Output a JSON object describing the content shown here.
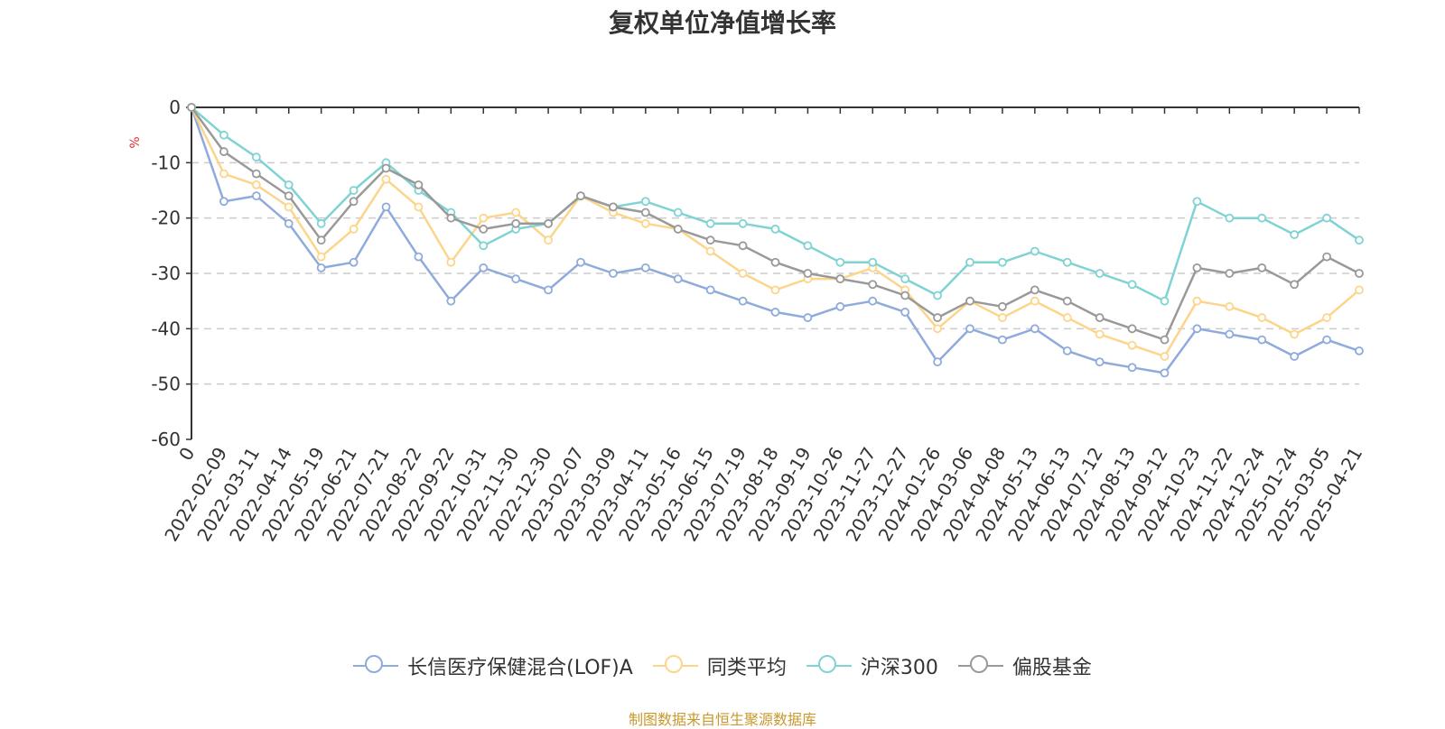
{
  "chart_data": {
    "type": "line",
    "title": "复权单位净值增长率",
    "ylabel": "%",
    "ylim": [
      -60,
      0
    ],
    "yticks": [
      0,
      -10,
      -20,
      -30,
      -40,
      -50,
      -60
    ],
    "grid": true,
    "legend_position": "bottom-center",
    "categories": [
      "0",
      "2022-02-09",
      "2022-03-11",
      "2022-04-14",
      "2022-05-19",
      "2022-06-21",
      "2022-07-21",
      "2022-08-22",
      "2022-09-22",
      "2022-10-31",
      "2022-11-30",
      "2022-12-30",
      "2023-02-07",
      "2023-03-09",
      "2023-04-11",
      "2023-05-16",
      "2023-06-15",
      "2023-07-19",
      "2023-08-18",
      "2023-09-19",
      "2023-10-26",
      "2023-11-27",
      "2023-12-27",
      "2024-01-26",
      "2024-03-06",
      "2024-04-08",
      "2024-05-13",
      "2024-06-13",
      "2024-07-12",
      "2024-08-13",
      "2024-09-12",
      "2024-10-23",
      "2024-11-22",
      "2024-12-24",
      "2025-01-24",
      "2025-03-05",
      "2025-04-21"
    ],
    "series": [
      {
        "name": "长信医疗保健混合(LOF)A",
        "color": "#8faadc",
        "values": [
          0,
          -17,
          -16,
          -21,
          -29,
          -28,
          -18,
          -27,
          -35,
          -29,
          -31,
          -33,
          -28,
          -30,
          -29,
          -31,
          -33,
          -35,
          -37,
          -38,
          -36,
          -35,
          -37,
          -46,
          -40,
          -42,
          -40,
          -44,
          -46,
          -47,
          -48,
          -40,
          -41,
          -42,
          -45,
          -42,
          -44
        ]
      },
      {
        "name": "同类平均",
        "color": "#fdd58a",
        "values": [
          0,
          -12,
          -14,
          -18,
          -27,
          -22,
          -13,
          -18,
          -28,
          -20,
          -19,
          -24,
          -16,
          -19,
          -21,
          -22,
          -26,
          -30,
          -33,
          -31,
          -31,
          -29,
          -33,
          -40,
          -35,
          -38,
          -35,
          -38,
          -41,
          -43,
          -45,
          -35,
          -36,
          -38,
          -41,
          -38,
          -33
        ]
      },
      {
        "name": "沪深300",
        "color": "#7fd3d3",
        "values": [
          0,
          -5,
          -9,
          -14,
          -21,
          -15,
          -10,
          -15,
          -19,
          -25,
          -22,
          -21,
          -16,
          -18,
          -17,
          -19,
          -21,
          -21,
          -22,
          -25,
          -28,
          -28,
          -31,
          -34,
          -28,
          -28,
          -26,
          -28,
          -30,
          -32,
          -35,
          -17,
          -20,
          -20,
          -23,
          -20,
          -24
        ]
      },
      {
        "name": "偏股基金",
        "color": "#999999",
        "values": [
          0,
          -8,
          -12,
          -16,
          -24,
          -17,
          -11,
          -14,
          -20,
          -22,
          -21,
          -21,
          -16,
          -18,
          -19,
          -22,
          -24,
          -25,
          -28,
          -30,
          -31,
          -32,
          -34,
          -38,
          -35,
          -36,
          -33,
          -35,
          -38,
          -40,
          -42,
          -29,
          -30,
          -29,
          -32,
          -27,
          -30
        ]
      }
    ]
  },
  "source_note": "制图数据来自恒生聚源数据库"
}
